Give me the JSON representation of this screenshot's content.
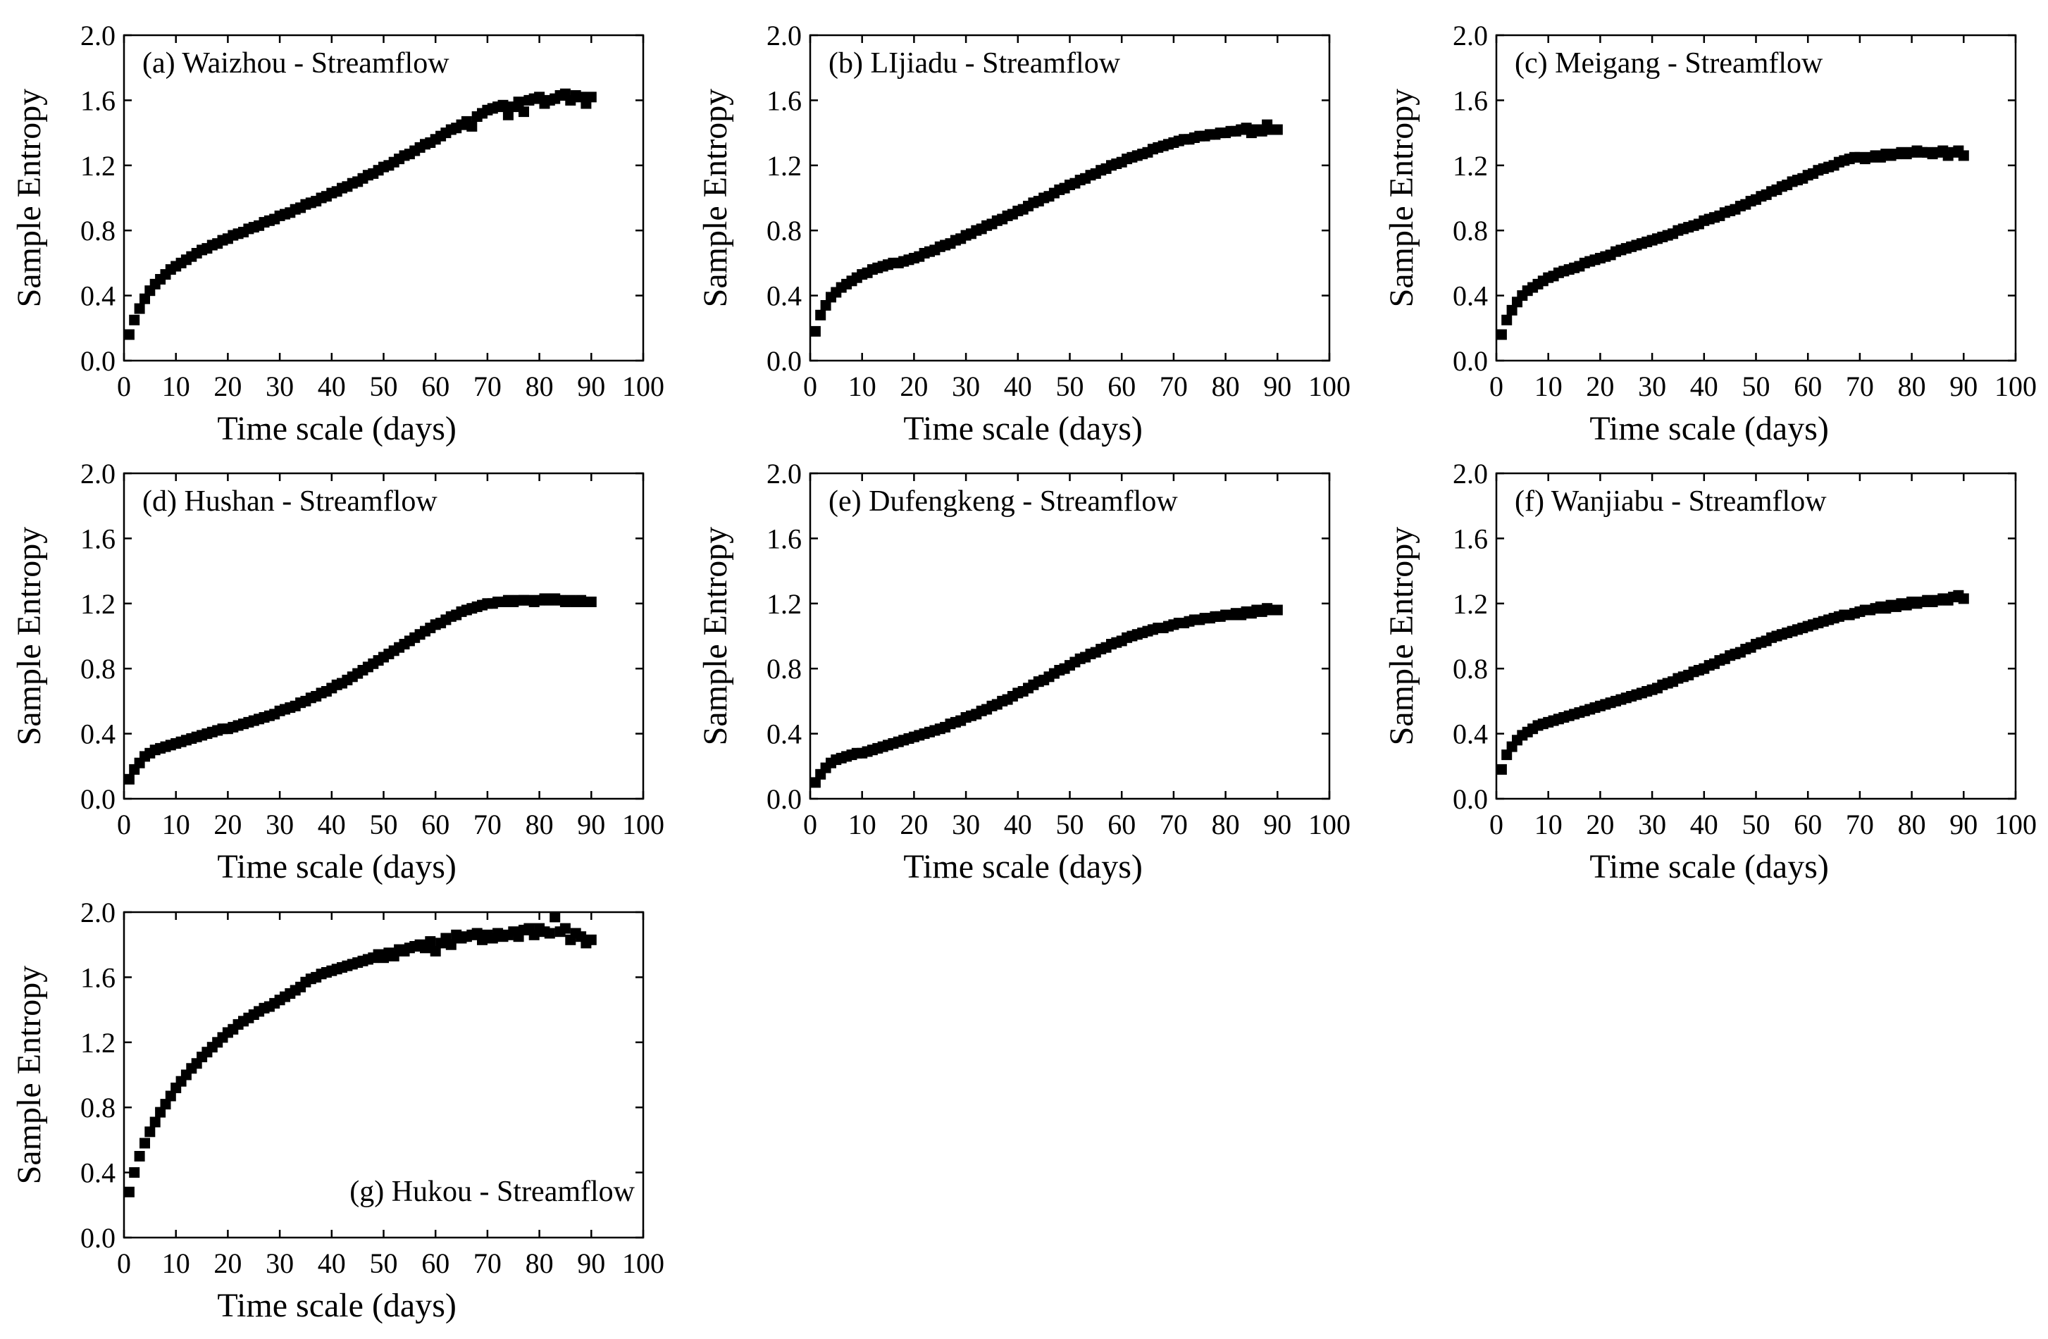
{
  "figure": {
    "x_axis_label": "Time scale (days)",
    "y_axis_label": "Sample Entropy",
    "x_ticks": [
      "0",
      "10",
      "20",
      "30",
      "40",
      "50",
      "60",
      "70",
      "80",
      "90",
      "100"
    ],
    "y_ticks": [
      "0.0",
      "0.4",
      "0.8",
      "1.2",
      "1.6",
      "2.0"
    ]
  },
  "chart_data": [
    {
      "type": "scatter",
      "title": "(a) Waizhou - Streamflow",
      "title_position": "top-left",
      "xlabel": "Time scale (days)",
      "ylabel": "Sample Entropy",
      "xlim": [
        0,
        100
      ],
      "ylim": [
        0,
        2.0
      ],
      "x": [
        1,
        2,
        3,
        4,
        5,
        6,
        7,
        8,
        9,
        10,
        11,
        12,
        13,
        14,
        15,
        16,
        17,
        18,
        19,
        20,
        21,
        22,
        23,
        24,
        25,
        26,
        27,
        28,
        29,
        30,
        31,
        32,
        33,
        34,
        35,
        36,
        37,
        38,
        39,
        40,
        41,
        42,
        43,
        44,
        45,
        46,
        47,
        48,
        49,
        50,
        51,
        52,
        53,
        54,
        55,
        56,
        57,
        58,
        59,
        60,
        61,
        62,
        63,
        64,
        65,
        66,
        67,
        68,
        69,
        70,
        71,
        72,
        73,
        74,
        75,
        76,
        77,
        78,
        79,
        80,
        81,
        82,
        83,
        84,
        85,
        86,
        87,
        88,
        89,
        90
      ],
      "y": [
        0.16,
        0.25,
        0.32,
        0.38,
        0.43,
        0.47,
        0.5,
        0.53,
        0.56,
        0.58,
        0.6,
        0.62,
        0.64,
        0.66,
        0.68,
        0.69,
        0.71,
        0.72,
        0.74,
        0.75,
        0.77,
        0.78,
        0.79,
        0.81,
        0.82,
        0.83,
        0.85,
        0.86,
        0.87,
        0.89,
        0.9,
        0.91,
        0.93,
        0.94,
        0.96,
        0.97,
        0.98,
        1.0,
        1.01,
        1.03,
        1.04,
        1.06,
        1.07,
        1.09,
        1.1,
        1.12,
        1.14,
        1.15,
        1.17,
        1.19,
        1.2,
        1.22,
        1.24,
        1.26,
        1.27,
        1.29,
        1.31,
        1.33,
        1.34,
        1.36,
        1.38,
        1.4,
        1.42,
        1.43,
        1.45,
        1.47,
        1.44,
        1.5,
        1.52,
        1.54,
        1.55,
        1.56,
        1.57,
        1.51,
        1.56,
        1.59,
        1.53,
        1.6,
        1.61,
        1.62,
        1.58,
        1.6,
        1.61,
        1.63,
        1.64,
        1.6,
        1.63,
        1.62,
        1.58,
        1.62
      ]
    },
    {
      "type": "scatter",
      "title": "(b) LIjiadu - Streamflow",
      "title_position": "top-left",
      "xlabel": "Time scale (days)",
      "ylabel": "Sample Entropy",
      "xlim": [
        0,
        100
      ],
      "ylim": [
        0,
        2.0
      ],
      "x": [
        1,
        2,
        3,
        4,
        5,
        6,
        7,
        8,
        9,
        10,
        11,
        12,
        13,
        14,
        15,
        16,
        17,
        18,
        19,
        20,
        21,
        22,
        23,
        24,
        25,
        26,
        27,
        28,
        29,
        30,
        31,
        32,
        33,
        34,
        35,
        36,
        37,
        38,
        39,
        40,
        41,
        42,
        43,
        44,
        45,
        46,
        47,
        48,
        49,
        50,
        51,
        52,
        53,
        54,
        55,
        56,
        57,
        58,
        59,
        60,
        61,
        62,
        63,
        64,
        65,
        66,
        67,
        68,
        69,
        70,
        71,
        72,
        73,
        74,
        75,
        76,
        77,
        78,
        79,
        80,
        81,
        82,
        83,
        84,
        85,
        86,
        87,
        88,
        89,
        90
      ],
      "y": [
        0.18,
        0.28,
        0.34,
        0.39,
        0.42,
        0.45,
        0.47,
        0.49,
        0.51,
        0.53,
        0.54,
        0.56,
        0.57,
        0.58,
        0.59,
        0.6,
        0.6,
        0.61,
        0.62,
        0.63,
        0.64,
        0.66,
        0.67,
        0.68,
        0.7,
        0.71,
        0.72,
        0.74,
        0.75,
        0.77,
        0.78,
        0.8,
        0.81,
        0.83,
        0.84,
        0.86,
        0.87,
        0.89,
        0.9,
        0.92,
        0.93,
        0.95,
        0.97,
        0.98,
        1.0,
        1.01,
        1.03,
        1.05,
        1.06,
        1.08,
        1.09,
        1.11,
        1.12,
        1.14,
        1.15,
        1.17,
        1.18,
        1.2,
        1.21,
        1.22,
        1.24,
        1.25,
        1.26,
        1.27,
        1.28,
        1.3,
        1.31,
        1.32,
        1.33,
        1.34,
        1.35,
        1.36,
        1.36,
        1.37,
        1.38,
        1.38,
        1.39,
        1.39,
        1.4,
        1.4,
        1.41,
        1.41,
        1.42,
        1.43,
        1.4,
        1.42,
        1.41,
        1.45,
        1.42,
        1.42
      ]
    },
    {
      "type": "scatter",
      "title": "(c) Meigang - Streamflow",
      "title_position": "top-left",
      "xlabel": "Time scale (days)",
      "ylabel": "Sample Entropy",
      "xlim": [
        0,
        100
      ],
      "ylim": [
        0,
        2.0
      ],
      "x": [
        1,
        2,
        3,
        4,
        5,
        6,
        7,
        8,
        9,
        10,
        11,
        12,
        13,
        14,
        15,
        16,
        17,
        18,
        19,
        20,
        21,
        22,
        23,
        24,
        25,
        26,
        27,
        28,
        29,
        30,
        31,
        32,
        33,
        34,
        35,
        36,
        37,
        38,
        39,
        40,
        41,
        42,
        43,
        44,
        45,
        46,
        47,
        48,
        49,
        50,
        51,
        52,
        53,
        54,
        55,
        56,
        57,
        58,
        59,
        60,
        61,
        62,
        63,
        64,
        65,
        66,
        67,
        68,
        69,
        70,
        71,
        72,
        73,
        74,
        75,
        76,
        77,
        78,
        79,
        80,
        81,
        82,
        83,
        84,
        85,
        86,
        87,
        88,
        89,
        90
      ],
      "y": [
        0.16,
        0.25,
        0.31,
        0.36,
        0.4,
        0.43,
        0.45,
        0.47,
        0.49,
        0.51,
        0.52,
        0.54,
        0.55,
        0.56,
        0.57,
        0.58,
        0.6,
        0.61,
        0.62,
        0.63,
        0.64,
        0.65,
        0.67,
        0.68,
        0.69,
        0.7,
        0.71,
        0.72,
        0.73,
        0.74,
        0.75,
        0.76,
        0.77,
        0.78,
        0.8,
        0.81,
        0.82,
        0.83,
        0.84,
        0.86,
        0.87,
        0.88,
        0.89,
        0.91,
        0.92,
        0.93,
        0.95,
        0.96,
        0.98,
        0.99,
        1.01,
        1.02,
        1.04,
        1.05,
        1.07,
        1.08,
        1.1,
        1.11,
        1.12,
        1.14,
        1.15,
        1.17,
        1.18,
        1.19,
        1.2,
        1.22,
        1.23,
        1.24,
        1.25,
        1.25,
        1.24,
        1.25,
        1.26,
        1.25,
        1.27,
        1.26,
        1.27,
        1.28,
        1.27,
        1.28,
        1.29,
        1.28,
        1.28,
        1.27,
        1.28,
        1.29,
        1.26,
        1.28,
        1.29,
        1.26
      ]
    },
    {
      "type": "scatter",
      "title": "(d) Hushan - Streamflow",
      "title_position": "top-left",
      "xlabel": "Time scale (days)",
      "ylabel": "Sample Entropy",
      "xlim": [
        0,
        100
      ],
      "ylim": [
        0,
        2.0
      ],
      "x": [
        1,
        2,
        3,
        4,
        5,
        6,
        7,
        8,
        9,
        10,
        11,
        12,
        13,
        14,
        15,
        16,
        17,
        18,
        19,
        20,
        21,
        22,
        23,
        24,
        25,
        26,
        27,
        28,
        29,
        30,
        31,
        32,
        33,
        34,
        35,
        36,
        37,
        38,
        39,
        40,
        41,
        42,
        43,
        44,
        45,
        46,
        47,
        48,
        49,
        50,
        51,
        52,
        53,
        54,
        55,
        56,
        57,
        58,
        59,
        60,
        61,
        62,
        63,
        64,
        65,
        66,
        67,
        68,
        69,
        70,
        71,
        72,
        73,
        74,
        75,
        76,
        77,
        78,
        79,
        80,
        81,
        82,
        83,
        84,
        85,
        86,
        87,
        88,
        89,
        90
      ],
      "y": [
        0.12,
        0.18,
        0.22,
        0.26,
        0.28,
        0.3,
        0.31,
        0.32,
        0.33,
        0.34,
        0.35,
        0.36,
        0.37,
        0.38,
        0.39,
        0.4,
        0.41,
        0.42,
        0.43,
        0.43,
        0.44,
        0.45,
        0.46,
        0.47,
        0.48,
        0.49,
        0.5,
        0.51,
        0.52,
        0.54,
        0.55,
        0.56,
        0.57,
        0.59,
        0.6,
        0.62,
        0.63,
        0.65,
        0.66,
        0.68,
        0.7,
        0.71,
        0.73,
        0.75,
        0.77,
        0.79,
        0.81,
        0.83,
        0.85,
        0.87,
        0.89,
        0.91,
        0.93,
        0.95,
        0.97,
        0.99,
        1.01,
        1.03,
        1.05,
        1.07,
        1.08,
        1.1,
        1.12,
        1.13,
        1.15,
        1.16,
        1.17,
        1.18,
        1.19,
        1.2,
        1.2,
        1.21,
        1.21,
        1.22,
        1.21,
        1.22,
        1.22,
        1.22,
        1.21,
        1.22,
        1.23,
        1.22,
        1.23,
        1.22,
        1.21,
        1.22,
        1.21,
        1.22,
        1.21,
        1.21
      ]
    },
    {
      "type": "scatter",
      "title": "(e) Dufengkeng - Streamflow",
      "title_position": "top-left",
      "xlabel": "Time scale (days)",
      "ylabel": "Sample Entropy",
      "xlim": [
        0,
        100
      ],
      "ylim": [
        0,
        2.0
      ],
      "x": [
        1,
        2,
        3,
        4,
        5,
        6,
        7,
        8,
        9,
        10,
        11,
        12,
        13,
        14,
        15,
        16,
        17,
        18,
        19,
        20,
        21,
        22,
        23,
        24,
        25,
        26,
        27,
        28,
        29,
        30,
        31,
        32,
        33,
        34,
        35,
        36,
        37,
        38,
        39,
        40,
        41,
        42,
        43,
        44,
        45,
        46,
        47,
        48,
        49,
        50,
        51,
        52,
        53,
        54,
        55,
        56,
        57,
        58,
        59,
        60,
        61,
        62,
        63,
        64,
        65,
        66,
        67,
        68,
        69,
        70,
        71,
        72,
        73,
        74,
        75,
        76,
        77,
        78,
        79,
        80,
        81,
        82,
        83,
        84,
        85,
        86,
        87,
        88,
        89,
        90
      ],
      "y": [
        0.1,
        0.15,
        0.19,
        0.22,
        0.24,
        0.25,
        0.26,
        0.27,
        0.28,
        0.28,
        0.29,
        0.3,
        0.31,
        0.32,
        0.33,
        0.34,
        0.35,
        0.36,
        0.37,
        0.38,
        0.39,
        0.4,
        0.41,
        0.42,
        0.43,
        0.44,
        0.46,
        0.47,
        0.48,
        0.5,
        0.51,
        0.52,
        0.54,
        0.55,
        0.57,
        0.58,
        0.6,
        0.61,
        0.63,
        0.65,
        0.66,
        0.68,
        0.7,
        0.72,
        0.73,
        0.75,
        0.77,
        0.79,
        0.8,
        0.82,
        0.84,
        0.86,
        0.87,
        0.89,
        0.9,
        0.92,
        0.93,
        0.95,
        0.96,
        0.97,
        0.99,
        1.0,
        1.01,
        1.02,
        1.03,
        1.04,
        1.05,
        1.05,
        1.06,
        1.07,
        1.08,
        1.08,
        1.09,
        1.1,
        1.1,
        1.11,
        1.11,
        1.12,
        1.12,
        1.13,
        1.13,
        1.14,
        1.13,
        1.15,
        1.14,
        1.16,
        1.15,
        1.17,
        1.16,
        1.16
      ]
    },
    {
      "type": "scatter",
      "title": "(f) Wanjiabu - Streamflow",
      "title_position": "top-left",
      "xlabel": "Time scale (days)",
      "ylabel": "Sample Entropy",
      "xlim": [
        0,
        100
      ],
      "ylim": [
        0,
        2.0
      ],
      "x": [
        1,
        2,
        3,
        4,
        5,
        6,
        7,
        8,
        9,
        10,
        11,
        12,
        13,
        14,
        15,
        16,
        17,
        18,
        19,
        20,
        21,
        22,
        23,
        24,
        25,
        26,
        27,
        28,
        29,
        30,
        31,
        32,
        33,
        34,
        35,
        36,
        37,
        38,
        39,
        40,
        41,
        42,
        43,
        44,
        45,
        46,
        47,
        48,
        49,
        50,
        51,
        52,
        53,
        54,
        55,
        56,
        57,
        58,
        59,
        60,
        61,
        62,
        63,
        64,
        65,
        66,
        67,
        68,
        69,
        70,
        71,
        72,
        73,
        74,
        75,
        76,
        77,
        78,
        79,
        80,
        81,
        82,
        83,
        84,
        85,
        86,
        87,
        88,
        89,
        90
      ],
      "y": [
        0.18,
        0.27,
        0.32,
        0.36,
        0.39,
        0.41,
        0.43,
        0.45,
        0.46,
        0.47,
        0.48,
        0.49,
        0.5,
        0.51,
        0.52,
        0.53,
        0.54,
        0.55,
        0.56,
        0.57,
        0.58,
        0.59,
        0.6,
        0.61,
        0.62,
        0.63,
        0.64,
        0.65,
        0.66,
        0.67,
        0.68,
        0.7,
        0.71,
        0.72,
        0.74,
        0.75,
        0.76,
        0.78,
        0.79,
        0.8,
        0.82,
        0.83,
        0.85,
        0.86,
        0.88,
        0.89,
        0.9,
        0.92,
        0.93,
        0.95,
        0.96,
        0.97,
        0.99,
        1.0,
        1.01,
        1.02,
        1.03,
        1.04,
        1.05,
        1.06,
        1.07,
        1.08,
        1.09,
        1.1,
        1.11,
        1.12,
        1.13,
        1.13,
        1.14,
        1.15,
        1.16,
        1.16,
        1.17,
        1.18,
        1.17,
        1.19,
        1.18,
        1.2,
        1.19,
        1.21,
        1.2,
        1.21,
        1.22,
        1.21,
        1.22,
        1.23,
        1.22,
        1.24,
        1.25,
        1.23
      ]
    },
    {
      "type": "scatter",
      "title": "(g) Hukou - Streamflow",
      "title_position": "bottom-right",
      "xlabel": "Time scale (days)",
      "ylabel": "Sample Entropy",
      "xlim": [
        0,
        100
      ],
      "ylim": [
        0,
        2.0
      ],
      "x": [
        1,
        2,
        3,
        4,
        5,
        6,
        7,
        8,
        9,
        10,
        11,
        12,
        13,
        14,
        15,
        16,
        17,
        18,
        19,
        20,
        21,
        22,
        23,
        24,
        25,
        26,
        27,
        28,
        29,
        30,
        31,
        32,
        33,
        34,
        35,
        36,
        37,
        38,
        39,
        40,
        41,
        42,
        43,
        44,
        45,
        46,
        47,
        48,
        49,
        50,
        51,
        52,
        53,
        54,
        55,
        56,
        57,
        58,
        59,
        60,
        61,
        62,
        63,
        64,
        65,
        66,
        67,
        68,
        69,
        70,
        71,
        72,
        73,
        74,
        75,
        76,
        77,
        78,
        79,
        80,
        81,
        82,
        83,
        84,
        85,
        86,
        87,
        88,
        89,
        90
      ],
      "y": [
        0.28,
        0.4,
        0.5,
        0.58,
        0.65,
        0.71,
        0.77,
        0.82,
        0.87,
        0.92,
        0.96,
        1.0,
        1.04,
        1.07,
        1.11,
        1.14,
        1.17,
        1.2,
        1.23,
        1.26,
        1.28,
        1.31,
        1.33,
        1.35,
        1.37,
        1.39,
        1.41,
        1.42,
        1.44,
        1.46,
        1.48,
        1.5,
        1.52,
        1.54,
        1.57,
        1.59,
        1.6,
        1.62,
        1.63,
        1.64,
        1.65,
        1.66,
        1.67,
        1.68,
        1.69,
        1.7,
        1.71,
        1.72,
        1.74,
        1.72,
        1.75,
        1.73,
        1.77,
        1.76,
        1.78,
        1.79,
        1.8,
        1.78,
        1.82,
        1.76,
        1.81,
        1.84,
        1.8,
        1.86,
        1.84,
        1.85,
        1.86,
        1.87,
        1.83,
        1.86,
        1.84,
        1.87,
        1.85,
        1.86,
        1.88,
        1.85,
        1.89,
        1.9,
        1.86,
        1.9,
        1.88,
        1.87,
        1.97,
        1.88,
        1.9,
        1.83,
        1.87,
        1.85,
        1.81,
        1.83
      ]
    }
  ]
}
